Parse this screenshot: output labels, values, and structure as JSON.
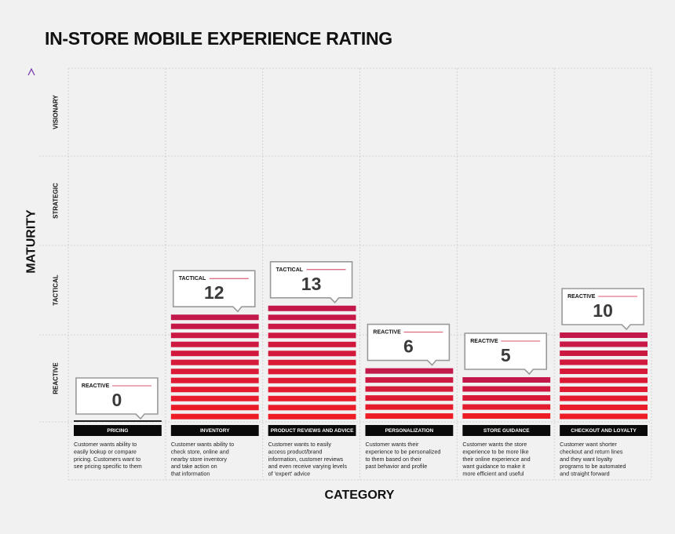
{
  "title": "IN-STORE MOBILE EXPERIENCE RATING",
  "chart_data": {
    "type": "bar",
    "title": "IN-STORE MOBILE EXPERIENCE RATING",
    "xlabel": "CATEGORY",
    "ylabel": "MATURITY",
    "ylim": [
      0,
      20
    ],
    "y_levels": [
      "REACTIVE",
      "TACTICAL",
      "STRATEGIC",
      "VISIONARY"
    ],
    "categories": [
      "PRICING",
      "INVENTORY",
      "PRODUCT REVIEWS AND ADVICE",
      "PERSONALIZATION",
      "STORE GUIDANCE",
      "CHECKOUT AND LOYALTY"
    ],
    "values": [
      0,
      12,
      13,
      6,
      5,
      10
    ],
    "levels": [
      "REACTIVE",
      "TACTICAL",
      "TACTICAL",
      "REACTIVE",
      "REACTIVE",
      "REACTIVE"
    ],
    "descriptions": [
      [
        "Customer wants ability to",
        "easily lookup or compare",
        "pricing. Customers want to",
        "see pricing specific to them"
      ],
      [
        "Customer wants ability to",
        "check store, online and",
        "nearby store inventory",
        "and take action on",
        "that information"
      ],
      [
        "Customer wants to easily",
        "access product/brand",
        "information, customer reviews",
        "and even receive varying levels",
        "of 'expert' advice"
      ],
      [
        "Customer wants their",
        "experience to be personalized",
        "to them based on their",
        "past behavior and profile"
      ],
      [
        "Customer wants the store",
        "experience to be more like",
        "their online experience and",
        "want guidance to make it",
        "more efficient and useful"
      ],
      [
        "Customer want shorter",
        "checkout and return lines",
        "and they want loyalty",
        "programs to be automated",
        "and straight forward"
      ]
    ],
    "grid": true,
    "colors": {
      "bar_top": "#c2184a",
      "bar_bottom": "#ee1c25",
      "label_bar": "#0a0a0a",
      "accent": "#cc1f3a",
      "axis_arrow": "#7b3fb0",
      "callout_border": "#999999"
    }
  }
}
